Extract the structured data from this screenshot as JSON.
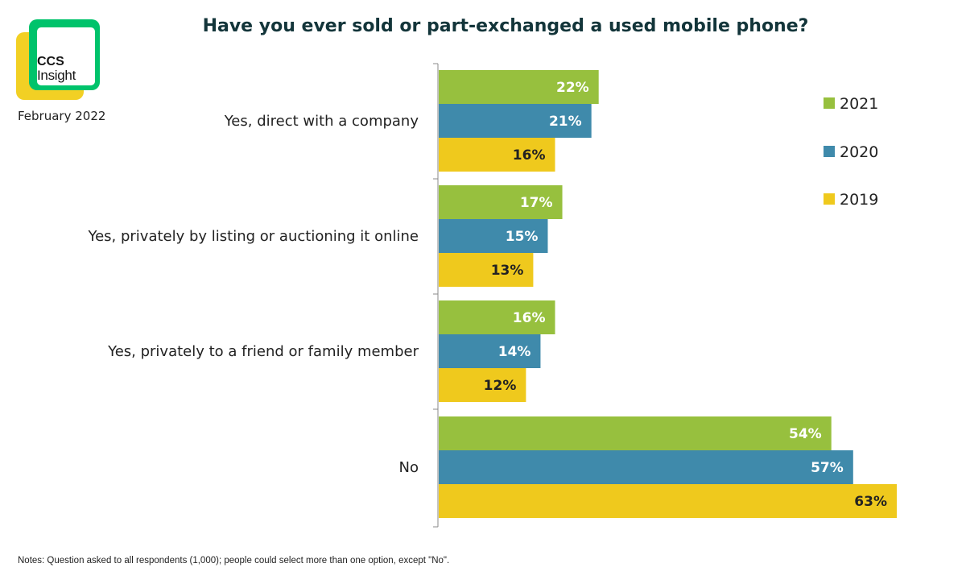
{
  "brand": {
    "line1": "CCS",
    "line2": "Insight"
  },
  "date": "February 2022",
  "note": "Notes: Question asked to all respondents (1,000); people could select more than one option, except \"No\".",
  "colors": {
    "2021": "#97c03e",
    "2020": "#3f8aab",
    "2019": "#efc91d"
  },
  "chart_data": {
    "type": "bar",
    "orientation": "horizontal",
    "title": "Have you ever sold or part-exchanged a used mobile phone?",
    "categories": [
      "Yes, direct with a company",
      "Yes, privately by listing or auctioning it online",
      "Yes, privately to a friend or family member",
      "No"
    ],
    "series": [
      {
        "name": "2021",
        "values": [
          22,
          17,
          16,
          54
        ],
        "labels": [
          "22%",
          "17%",
          "16%",
          "54%"
        ]
      },
      {
        "name": "2020",
        "values": [
          21,
          15,
          14,
          57
        ],
        "labels": [
          "21%",
          "15%",
          "14%",
          "57%"
        ]
      },
      {
        "name": "2019",
        "values": [
          16,
          13,
          12,
          63
        ],
        "labels": [
          "16%",
          "13%",
          "12%",
          "63%"
        ]
      }
    ],
    "xlim": [
      0,
      63
    ],
    "unit": "%",
    "legend_position": "right",
    "grid": false
  }
}
